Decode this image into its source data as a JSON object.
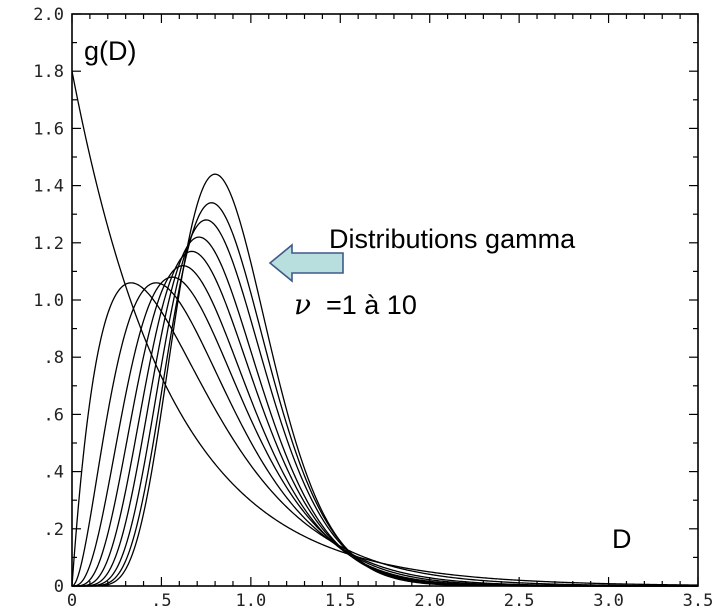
{
  "chart_data": {
    "type": "line",
    "title": "",
    "ylabel": "g(D)",
    "xlabel": "D",
    "xlim": [
      0,
      3.5
    ],
    "ylim": [
      0,
      2.0
    ],
    "x_ticks": [
      "0",
      ".5",
      "1.0",
      "1.5",
      "2.0",
      "2.5",
      "3.0",
      "3.5"
    ],
    "y_ticks": [
      "0",
      ".2",
      ".4",
      ".6",
      ".8",
      "1.0",
      "1.2",
      "1.4",
      "1.6",
      "1.8",
      "2.0"
    ],
    "grid": false,
    "distribution": "gamma",
    "shape_parameter_values": [
      1,
      2,
      3,
      4,
      5,
      6,
      7,
      8,
      9,
      10
    ],
    "series": [
      {
        "nu": 1,
        "peak_x": 0.0,
        "peak_y": 1.8
      },
      {
        "nu": 2,
        "peak_x": 0.33,
        "peak_y": 1.06
      },
      {
        "nu": 3,
        "peak_x": 0.47,
        "peak_y": 1.06
      },
      {
        "nu": 4,
        "peak_x": 0.56,
        "peak_y": 1.08
      },
      {
        "nu": 5,
        "peak_x": 0.62,
        "peak_y": 1.12
      },
      {
        "nu": 6,
        "peak_x": 0.67,
        "peak_y": 1.17
      },
      {
        "nu": 7,
        "peak_x": 0.71,
        "peak_y": 1.22
      },
      {
        "nu": 8,
        "peak_x": 0.75,
        "peak_y": 1.28
      },
      {
        "nu": 9,
        "peak_x": 0.78,
        "peak_y": 1.34
      },
      {
        "nu": 10,
        "peak_x": 0.8,
        "peak_y": 1.44
      }
    ]
  },
  "annotations": {
    "ylabel": "g(D)",
    "xlabel": "D",
    "label_line1": "Distributions gamma",
    "nu_symbol": "ν",
    "label_line2": "=1 à 10",
    "arrow_color": "#b8dede",
    "arrow_stroke": "#3f5a8a"
  }
}
